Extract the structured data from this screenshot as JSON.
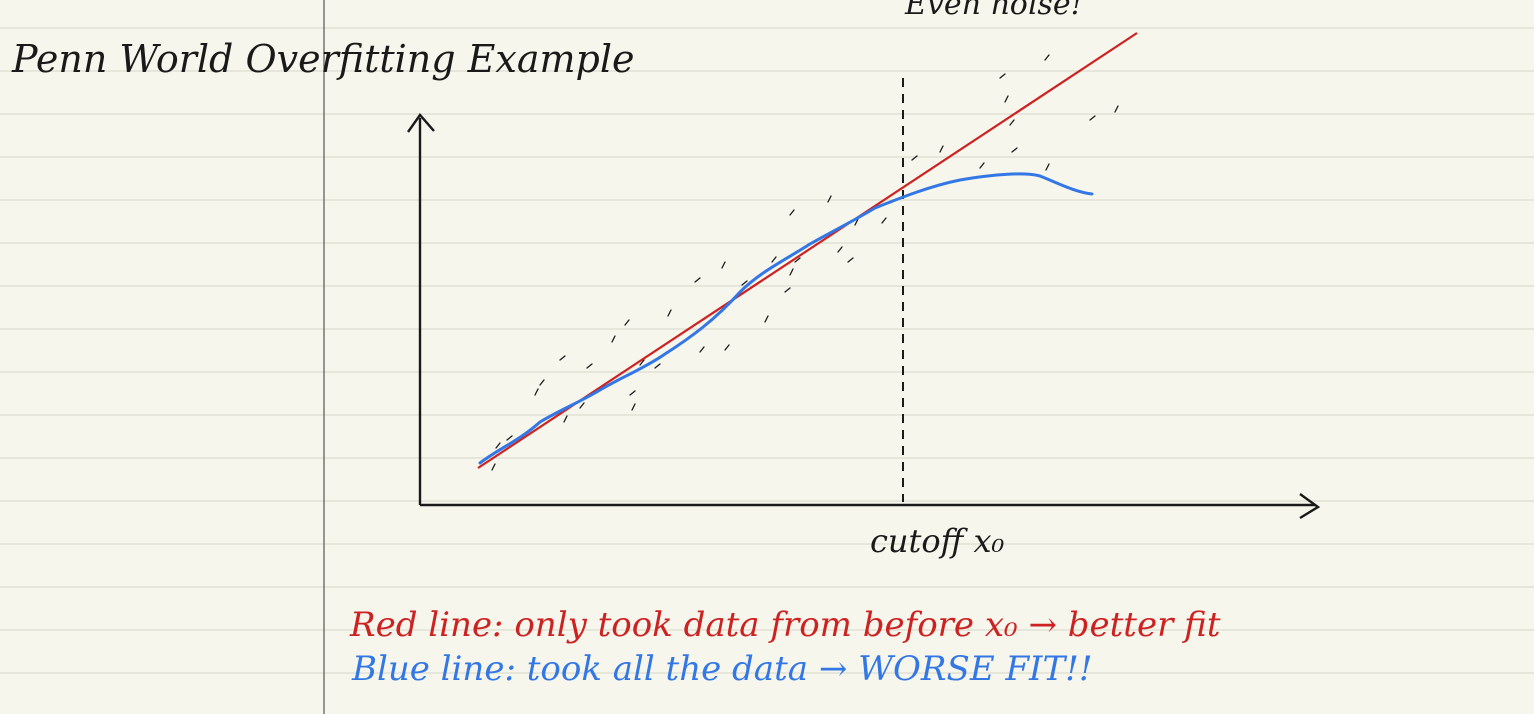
{
  "title": "Penn World Overfitting Example",
  "top_note": "Even noise!",
  "cutoff_label": "cutoff x₀",
  "red_caption": "Red line: only took data from before x₀ → better fit",
  "blue_caption": "Blue line: took all the data → WORSE FIT!!",
  "colors": {
    "paper": "#f7f6ec",
    "rule_line": "#dcdccf",
    "margin_line": "#555555",
    "ink": "#1a1a1a",
    "red": "#cc2222",
    "blue": "#3377e6"
  }
}
